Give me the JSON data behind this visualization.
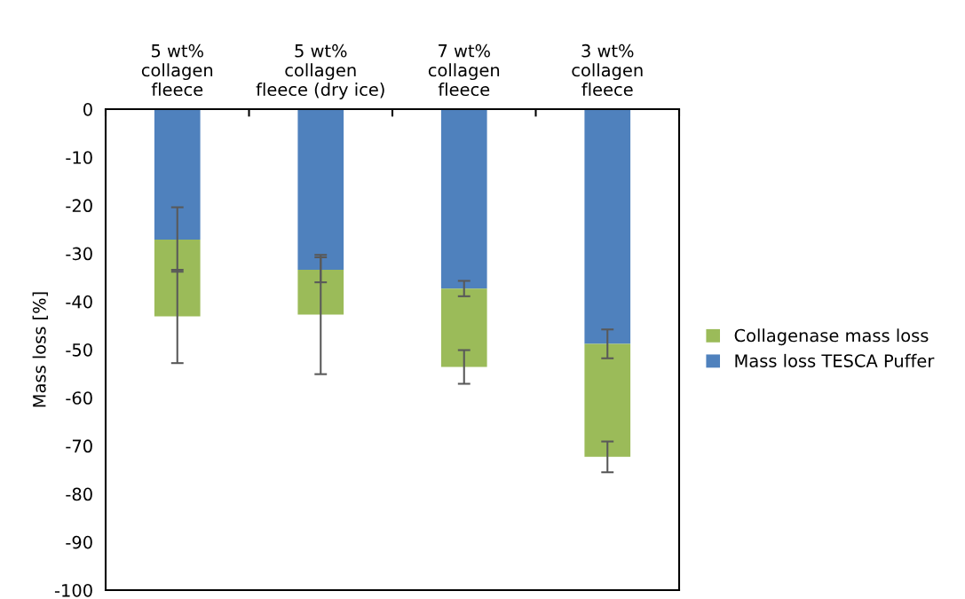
{
  "chart_data": {
    "type": "bar",
    "stacked": true,
    "ylabel": "Mass loss [%]",
    "categories": [
      "5 wt%\ncollagen\nfleece",
      "5 wt%\ncollagen\nfleece (dry ice)",
      "7 wt%\ncollagen\nfleece",
      "3 wt%\ncollagen\nfleece"
    ],
    "series": [
      {
        "name": "Mass loss TESCA Puffer",
        "color": "#4f81bd",
        "values": [
          -27.1,
          -33.4,
          -37.3,
          -48.8
        ],
        "errors": [
          6.7,
          2.6,
          1.6,
          3.0
        ]
      },
      {
        "name": "Collagenase mass loss",
        "color": "#9bbb59",
        "values": [
          -16.0,
          -9.3,
          -16.3,
          -23.5
        ],
        "errors": [
          9.7,
          12.4,
          3.5,
          3.2
        ]
      }
    ],
    "ylim": [
      -100,
      0
    ],
    "yticks": [
      0,
      -10,
      -20,
      -30,
      -40,
      -50,
      -60,
      -70,
      -80,
      -90,
      -100
    ],
    "grid": false,
    "legend": "right"
  }
}
